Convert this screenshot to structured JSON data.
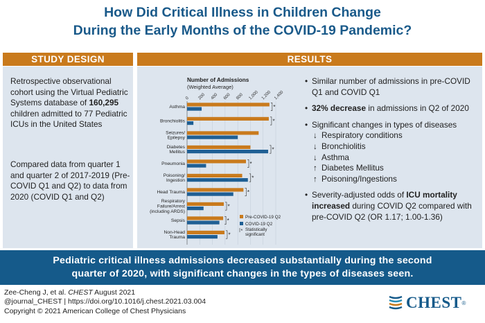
{
  "title": {
    "line1": "How Did Critical Illness in Children Change",
    "line2": "During the Early Months of the COVID-19 Pandemic?"
  },
  "study_design": {
    "header": "STUDY DESIGN",
    "p1_pre": "Retrospective observational cohort using the Virtual Pediatric Systems database of ",
    "p1_bold": "160,295",
    "p1_post": " children admitted to 77 Pediatric ICUs in the United States",
    "p2": "Compared data from quarter 1 and quarter 2 of 2017-2019 (Pre-COVID Q1 and Q2) to data from 2020 (COVID Q1 and Q2)"
  },
  "results": {
    "header": "RESULTS",
    "b1": "Similar number of admissions in pre-COVID Q1 and COVID Q1",
    "b2_bold": "32% decrease",
    "b2_post": " in admissions in Q2 of 2020",
    "b3": "Significant changes in types of diseases",
    "changes": [
      {
        "dir": "↓",
        "label": "Respiratory conditions"
      },
      {
        "dir": "↓",
        "label": "Bronchiolitis"
      },
      {
        "dir": "↓",
        "label": "Asthma"
      },
      {
        "dir": "↑",
        "label": "Diabetes Mellitus"
      },
      {
        "dir": "↑",
        "label": "Poisoning/Ingestions"
      }
    ],
    "b4_pre": "Severity-adjusted odds of ",
    "b4_bold": "ICU mortality increased",
    "b4_post": " during COVID Q2 compared with pre-COVID Q2 (OR 1.17; 1.00-1.36)"
  },
  "banner": {
    "line1": "Pediatric critical illness admissions decreased substantially during the second",
    "line2": "quarter of 2020, with significant changes in the types of diseases seen."
  },
  "footer": {
    "line1_pre": "Zee-Cheng J, et al. ",
    "line1_italic": "CHEST",
    "line1_post": " August 2021",
    "line2": "@journal_CHEST | https://doi.org/10.1016/j.chest.2021.03.004",
    "line3": "Copyright © 2021 American College of Chest Physicians"
  },
  "logo": {
    "text": "CHEST",
    "reg": "®"
  },
  "colors": {
    "title": "#1a5a8a",
    "header_bg": "#c97a1c",
    "panel_bg": "#dde5ee",
    "banner_bg": "#155a8a",
    "pre_covid": "#c97a1c",
    "covid": "#1f5f94"
  },
  "chart_data": {
    "type": "bar",
    "orientation": "horizontal",
    "title": "Number of Admissions",
    "subtitle": "(Weighted Average)",
    "xlim": [
      0,
      1400
    ],
    "xticks": [
      0,
      200,
      400,
      600,
      800,
      1000,
      1200,
      1400
    ],
    "categories": [
      "Asthma",
      "Bronchiolitis",
      "Seizures/ Epilepsy",
      "Diabetes Mellitus",
      "Pneumonia",
      "Poisoning/ Ingestion",
      "Head Trauma",
      "Respiratory Failure/Arrest (including ARDS)",
      "Sepsis",
      "Non-Head Trauma"
    ],
    "series": [
      {
        "name": "Pre-COVID-19 Q2",
        "values": [
          1300,
          1290,
          1130,
          1000,
          930,
          870,
          890,
          580,
          570,
          590
        ]
      },
      {
        "name": "COVID-19 Q2",
        "values": [
          230,
          100,
          800,
          1280,
          300,
          960,
          730,
          260,
          510,
          480
        ]
      }
    ],
    "significant": [
      true,
      true,
      false,
      true,
      true,
      true,
      true,
      true,
      true,
      true
    ],
    "significance_label": "Statistically significant",
    "significance_marker": "*",
    "legend_position": "bottom-right"
  }
}
